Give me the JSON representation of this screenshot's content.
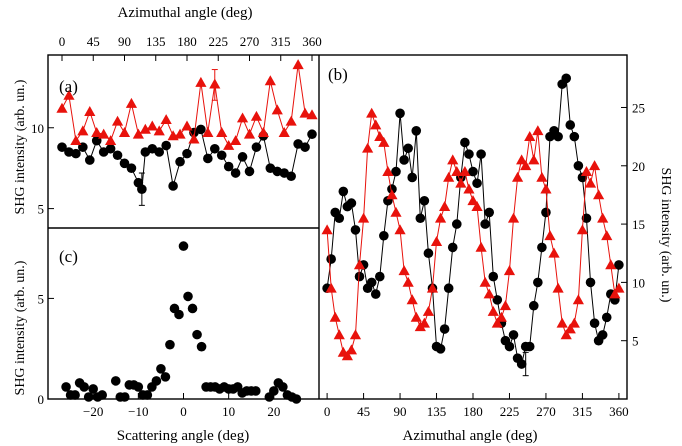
{
  "figure": {
    "top_axis_title": "Azimuthal angle (deg)",
    "left_axis_title_top": "SHG intensity (arb. un.)",
    "left_axis_title_bottom": "SHG intensity (arb. un.)",
    "right_axis_title": "SHG intensity (arb. un.)",
    "bottom_left_axis_title": "Scattering angle (deg)",
    "bottom_right_axis_title": "Azimuthal angle (deg)",
    "colors": {
      "black": "#000000",
      "red": "#e8120c",
      "axes": "#000000"
    }
  },
  "chart_data": [
    {
      "panel": "(a)",
      "type": "line",
      "marker_types": [
        "circle",
        "triangle"
      ],
      "xlabel": "Azimuthal angle (deg)",
      "ylabel": "SHG intensity (arb. un.)",
      "xlim": [
        0,
        360
      ],
      "ylim": [
        3.8,
        14.5
      ],
      "x_ticks": [
        0,
        45,
        90,
        135,
        180,
        225,
        270,
        315,
        360
      ],
      "y_ticks": [
        5,
        10
      ],
      "grid": false,
      "series": [
        {
          "color": "#000000",
          "marker": "circle",
          "x": [
            0,
            10,
            20,
            30,
            40,
            50,
            60,
            70,
            80,
            90,
            100,
            110,
            115,
            120,
            130,
            140,
            150,
            160,
            170,
            180,
            190,
            200,
            210,
            220,
            230,
            240,
            250,
            260,
            270,
            280,
            290,
            300,
            310,
            320,
            330,
            340,
            350,
            360
          ],
          "y": [
            8.8,
            8.5,
            8.4,
            8.8,
            8.0,
            9.2,
            8.5,
            8.7,
            8.3,
            7.8,
            7.5,
            6.6,
            6.2,
            8.5,
            8.7,
            8.5,
            8.9,
            6.4,
            7.9,
            8.4,
            9.7,
            9.9,
            8.1,
            8.7,
            8.3,
            7.6,
            7.2,
            8.2,
            7.3,
            8.8,
            9.5,
            7.5,
            7.3,
            7.2,
            7.0,
            9.0,
            8.8,
            9.6
          ],
          "error_bar": {
            "x": 115,
            "y": 6.2,
            "minus": 1.0,
            "plus": 1.0
          }
        },
        {
          "color": "#e8120c",
          "marker": "triangle",
          "x": [
            0,
            10,
            20,
            30,
            40,
            50,
            60,
            70,
            80,
            90,
            100,
            110,
            120,
            130,
            140,
            150,
            160,
            170,
            180,
            190,
            200,
            210,
            220,
            230,
            240,
            250,
            260,
            270,
            280,
            290,
            300,
            310,
            320,
            330,
            340,
            350,
            360
          ],
          "y": [
            11.2,
            12.0,
            9.2,
            9.8,
            11.0,
            9.7,
            9.6,
            9.2,
            10.4,
            9.7,
            11.5,
            9.6,
            9.9,
            10.1,
            9.8,
            10.5,
            9.5,
            9.6,
            10.1,
            9.3,
            12.8,
            9.7,
            12.7,
            9.7,
            8.9,
            9.2,
            10.6,
            9.6,
            10.7,
            9.7,
            12.9,
            11.1,
            9.7,
            10.4,
            13.9,
            10.9,
            10.8
          ],
          "error_bar": {
            "x": 220,
            "y": 12.7,
            "minus": 1.0,
            "plus": 0.9
          }
        }
      ]
    },
    {
      "panel": "(b)",
      "type": "line",
      "marker_types": [
        "circle",
        "triangle"
      ],
      "xlabel": "Azimuthal angle (deg)",
      "ylabel": "SHG intensity (arb. un.)",
      "xlim": [
        -10,
        370
      ],
      "ylim": [
        0,
        29.5
      ],
      "x_ticks": [
        0,
        45,
        90,
        135,
        180,
        225,
        270,
        315,
        360
      ],
      "y_ticks": [
        5,
        10,
        15,
        20,
        25
      ],
      "grid": false,
      "series": [
        {
          "color": "#000000",
          "marker": "circle",
          "x": [
            0,
            5,
            10,
            15,
            20,
            25,
            30,
            35,
            40,
            45,
            50,
            55,
            60,
            65,
            70,
            75,
            80,
            85,
            90,
            95,
            100,
            105,
            110,
            115,
            120,
            125,
            130,
            135,
            140,
            145,
            150,
            155,
            160,
            165,
            170,
            175,
            180,
            185,
            190,
            195,
            200,
            205,
            210,
            215,
            220,
            225,
            230,
            235,
            240,
            245,
            250,
            255,
            260,
            265,
            270,
            275,
            280,
            285,
            290,
            295,
            300,
            305,
            310,
            315,
            320,
            325,
            330,
            335,
            340,
            345,
            350,
            355,
            360
          ],
          "y": [
            9.5,
            12.0,
            16.0,
            15.5,
            17.8,
            16.5,
            16.8,
            14.5,
            10.5,
            11.5,
            9.5,
            10.0,
            9.0,
            10.5,
            14.0,
            17.0,
            18.0,
            19.5,
            24.5,
            20.5,
            21.5,
            19.0,
            23.0,
            15.5,
            17.0,
            12.5,
            9.5,
            4.5,
            4.3,
            6.0,
            9.5,
            13.0,
            15.0,
            19.0,
            22.0,
            21.0,
            19.5,
            18.5,
            21.0,
            15.0,
            16.0,
            10.5,
            8.5,
            6.5,
            5.0,
            4.5,
            5.5,
            3.5,
            3.0,
            4.5,
            4.5,
            8.0,
            10.0,
            13.0,
            16.0,
            22.5,
            23.0,
            22.5,
            27.0,
            27.5,
            23.5,
            22.5,
            20.0,
            19.0,
            15.5,
            10.0,
            6.5,
            5.0,
            5.5,
            7.0,
            9.0,
            8.5,
            11.5
          ],
          "error_bar": {
            "x": 245,
            "y": 3.0,
            "minus": 1.0,
            "plus": 1.0
          }
        },
        {
          "color": "#e8120c",
          "marker": "triangle",
          "x": [
            0,
            5,
            10,
            15,
            20,
            25,
            30,
            35,
            40,
            45,
            50,
            55,
            60,
            65,
            70,
            75,
            80,
            85,
            90,
            95,
            100,
            105,
            110,
            115,
            120,
            125,
            130,
            135,
            140,
            145,
            150,
            155,
            160,
            165,
            170,
            175,
            180,
            185,
            190,
            195,
            200,
            205,
            210,
            215,
            220,
            225,
            230,
            235,
            240,
            245,
            250,
            255,
            260,
            265,
            270,
            275,
            280,
            285,
            290,
            295,
            300,
            305,
            310,
            315,
            320,
            325,
            330,
            335,
            340,
            345,
            350,
            355,
            360
          ],
          "y": [
            14.5,
            9.5,
            7.0,
            5.5,
            4.0,
            3.7,
            4.2,
            5.5,
            11.5,
            15.5,
            21.5,
            24.5,
            23.5,
            22.5,
            22.0,
            19.5,
            17.5,
            16.0,
            14.5,
            11.0,
            10.0,
            8.5,
            7.0,
            6.2,
            6.5,
            7.5,
            9.5,
            13.5,
            15.5,
            16.5,
            19.0,
            20.5,
            19.5,
            18.5,
            19.5,
            18.0,
            17.0,
            16.5,
            13.0,
            10.0,
            9.0,
            7.5,
            6.5,
            7.0,
            8.0,
            11.0,
            15.5,
            19.0,
            20.5,
            20.0,
            22.5,
            20.5,
            23.0,
            19.0,
            18.0,
            14.0,
            12.5,
            9.5,
            6.5,
            5.5,
            6.0,
            6.5,
            8.5,
            14.5,
            19.5,
            18.5,
            20.0,
            17.5,
            15.5,
            14.0,
            11.5,
            9.0,
            9.5
          ]
        }
      ]
    },
    {
      "panel": "(c)",
      "type": "scatter",
      "marker_types": [
        "circle"
      ],
      "xlabel": "Scattering angle (deg)",
      "ylabel": "SHG intensity (arb. un.)",
      "xlim": [
        -30,
        30
      ],
      "ylim": [
        0,
        8.5
      ],
      "x_ticks": [
        -20,
        -10,
        0,
        10,
        20
      ],
      "y_ticks": [
        0,
        5
      ],
      "grid": false,
      "series": [
        {
          "color": "#000000",
          "marker": "circle",
          "x": [
            -26,
            -25,
            -24,
            -23,
            -22,
            -21,
            -20,
            -19,
            -18,
            -15,
            -14,
            -13,
            -12,
            -11,
            -10,
            -9,
            -8,
            -7,
            -6,
            -5,
            -4,
            -3,
            -2,
            -1,
            0,
            1,
            2,
            3,
            4,
            5,
            6,
            7,
            8,
            9,
            10,
            11,
            12,
            13,
            14,
            15,
            16,
            19,
            20,
            21,
            22,
            23,
            24,
            25
          ],
          "y": [
            0.6,
            0.2,
            0.2,
            0.8,
            0.6,
            0.1,
            0.5,
            0.1,
            0.2,
            0.9,
            0.1,
            0.1,
            0.7,
            0.7,
            0.6,
            0.2,
            0.2,
            0.6,
            0.9,
            1.5,
            1.1,
            2.7,
            4.5,
            4.2,
            7.6,
            5.1,
            4.5,
            3.2,
            2.6,
            0.6,
            0.6,
            0.6,
            0.5,
            0.6,
            0.5,
            0.5,
            0.6,
            0.3,
            0.4,
            0.4,
            0.4,
            0.1,
            0.4,
            0.8,
            0.6,
            0.2,
            0.1,
            0.0
          ]
        }
      ]
    }
  ]
}
